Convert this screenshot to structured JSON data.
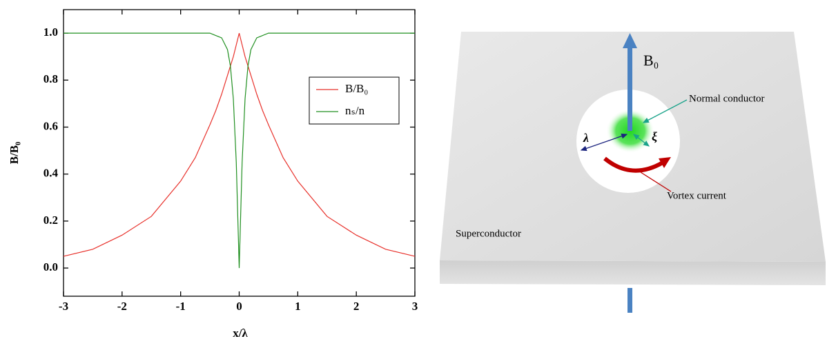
{
  "chart_data": {
    "type": "line",
    "xlabel": "x/λ",
    "ylabel": "B/B₀",
    "x": [
      -3,
      -2.5,
      -2,
      -1.5,
      -1,
      -0.75,
      -0.5,
      -0.4,
      -0.3,
      -0.2,
      -0.15,
      -0.1,
      -0.05,
      0,
      0.05,
      0.1,
      0.15,
      0.2,
      0.3,
      0.4,
      0.5,
      0.75,
      1,
      1.5,
      2,
      2.5,
      3
    ],
    "series": [
      {
        "name": "B/B₀",
        "color": "#e8302a",
        "values": [
          0.05,
          0.08,
          0.14,
          0.22,
          0.37,
          0.47,
          0.61,
          0.67,
          0.74,
          0.82,
          0.86,
          0.9,
          0.95,
          1.0,
          0.95,
          0.9,
          0.86,
          0.82,
          0.74,
          0.67,
          0.61,
          0.47,
          0.37,
          0.22,
          0.14,
          0.08,
          0.05
        ]
      },
      {
        "name": "nₛ/n",
        "color": "#1f8f1f",
        "values": [
          1.0,
          1.0,
          1.0,
          1.0,
          1.0,
          1.0,
          1.0,
          0.99,
          0.98,
          0.93,
          0.86,
          0.72,
          0.45,
          0.0,
          0.45,
          0.72,
          0.86,
          0.93,
          0.98,
          0.99,
          1.0,
          1.0,
          1.0,
          1.0,
          1.0,
          1.0,
          1.0
        ]
      }
    ],
    "xlim": [
      -3,
      3
    ],
    "ylim": [
      -0.12,
      1.1
    ],
    "xticks": [
      -3,
      -2,
      -1,
      0,
      1,
      2,
      3
    ],
    "yticks": [
      {
        "value": 0,
        "label": "0.0"
      },
      0.2,
      0.4,
      0.6,
      0.8,
      {
        "value": 1,
        "label": "1.0"
      }
    ],
    "grid": false,
    "legend": "upper right"
  },
  "diagram": {
    "field": "B₀",
    "core": "Normal conductor",
    "penetration": "λ",
    "coherence": "ξ",
    "current": "Vortex current",
    "material": "Superconductor"
  }
}
